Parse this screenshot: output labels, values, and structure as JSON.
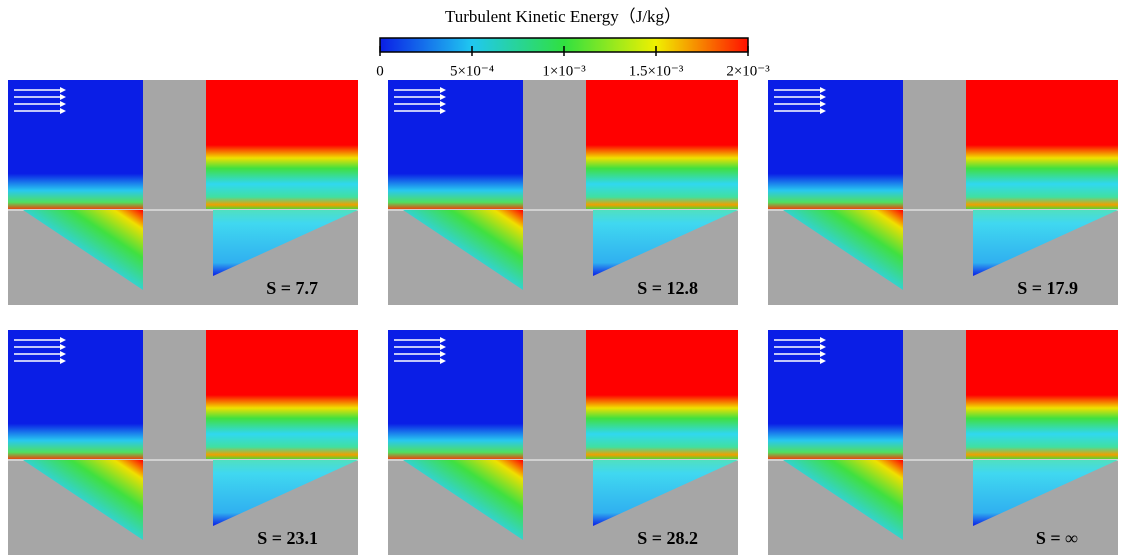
{
  "colorbar": {
    "title": "Turbulent Kinetic Energy（J/kg）",
    "lim": [
      0,
      0.002
    ],
    "ticks": [
      {
        "value": 0,
        "label": "0"
      },
      {
        "value": 0.0005,
        "label": "5×10⁻⁴"
      },
      {
        "value": 0.001,
        "label": "1×10⁻³"
      },
      {
        "value": 0.0015,
        "label": "1.5×10⁻³"
      },
      {
        "value": 0.002,
        "label": "2×10⁻³"
      }
    ]
  },
  "panels": [
    {
      "label": "S = 7.7"
    },
    {
      "label": "S = 12.8"
    },
    {
      "label": "S = 17.9"
    },
    {
      "label": "S = 23.1"
    },
    {
      "label": "S = 28.2"
    },
    {
      "label": "S = ∞"
    }
  ]
}
